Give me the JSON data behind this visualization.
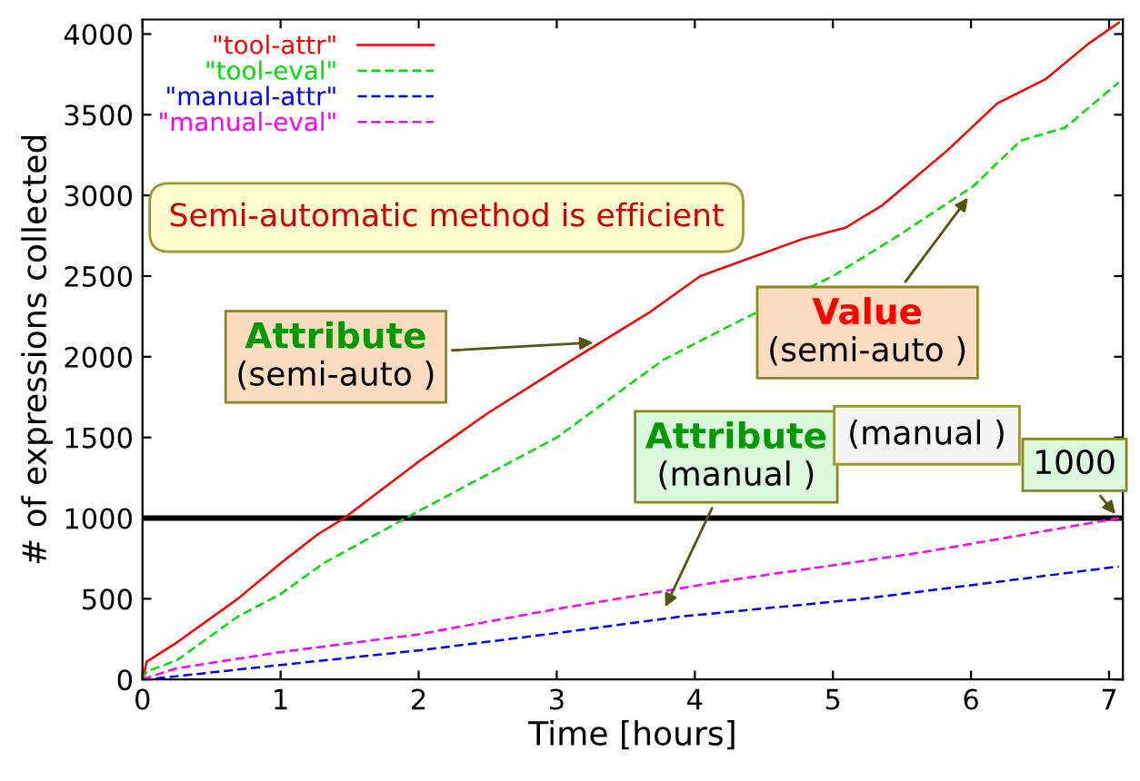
{
  "chart_data": {
    "type": "line",
    "xlabel": "Time [hours]",
    "ylabel": "# of expressions collected",
    "xlim": [
      0,
      7.1
    ],
    "ylim": [
      0,
      4090
    ],
    "xticks": [
      0,
      1,
      2,
      3,
      4,
      5,
      6,
      7
    ],
    "yticks": [
      0,
      500,
      1000,
      1500,
      2000,
      2500,
      3000,
      3500,
      4000
    ],
    "legend": "top left",
    "grid": false,
    "series": [
      {
        "name": "\"tool-attr\"",
        "color": "#ff0000",
        "line_style": "solid",
        "x": [
          0,
          0.03,
          0.25,
          0.69,
          1.0,
          1.27,
          1.46,
          2.0,
          2.5,
          3.11,
          3.68,
          4.04,
          4.78,
          5.09,
          5.36,
          5.83,
          6.19,
          6.54,
          6.85,
          7.07
        ],
        "values": [
          0,
          110,
          230,
          500,
          720,
          900,
          1000,
          1350,
          1650,
          1980,
          2280,
          2500,
          2730,
          2800,
          2940,
          3280,
          3570,
          3720,
          3940,
          4070
        ]
      },
      {
        "name": "\"tool-eval\"",
        "color": "#00dd00",
        "line_style": "dashed",
        "x": [
          0,
          0.03,
          0.25,
          0.69,
          1.0,
          1.31,
          1.97,
          3.0,
          3.77,
          4.34,
          5.0,
          5.49,
          6.02,
          6.36,
          6.68,
          7.07
        ],
        "values": [
          0,
          50,
          120,
          390,
          530,
          720,
          1030,
          1500,
          1980,
          2230,
          2500,
          2760,
          3060,
          3340,
          3420,
          3700
        ]
      },
      {
        "name": "\"manual-attr\"",
        "color": "#0000ff",
        "line_style": "dashed",
        "x": [
          0,
          0.03,
          1.0,
          2.0,
          3.02,
          3.9,
          5.22,
          7.07
        ],
        "values": [
          0,
          0,
          90,
          180,
          290,
          390,
          500,
          700
        ]
      },
      {
        "name": "\"manual-eval\"",
        "color": "#ff00ff",
        "line_style": "dashed",
        "x": [
          0,
          0.03,
          0.25,
          1.0,
          2.0,
          3.02,
          4.21,
          5.66,
          7.07
        ],
        "values": [
          0,
          10,
          70,
          170,
          280,
          440,
          610,
          790,
          1000
        ]
      }
    ],
    "ref_lines": [
      {
        "axis": "y",
        "value": 1000,
        "color": "#000000",
        "line_style": "solid"
      }
    ],
    "annotations": [
      {
        "text": "Attribute\n(semi-auto )",
        "x": 3.3,
        "y": 2090
      },
      {
        "text": "Value\n(semi-auto )",
        "x": 6.0,
        "y": 3010
      },
      {
        "text": "Attribute\n(manual )",
        "x": 3.77,
        "y": 420
      },
      "(manual )",
      {
        "text": "1000",
        "x": 7.07,
        "y": 1000
      },
      "Semi-automatic method is efficient"
    ]
  }
}
